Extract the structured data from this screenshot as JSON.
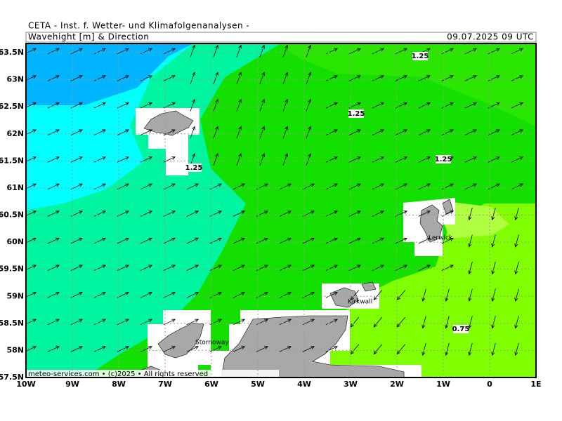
{
  "header": {
    "source": "CETA - Inst. f. Wetter- und Klimafolgenanalysen -",
    "title": "Wavehight [m] & Direction",
    "datetime": "09.07.2025 09 UTC"
  },
  "map": {
    "lat_ticks": [
      {
        "value": 63.5,
        "label": "63.5N"
      },
      {
        "value": 63,
        "label": "63N"
      },
      {
        "value": 62.5,
        "label": "62.5N"
      },
      {
        "value": 62,
        "label": "62N"
      },
      {
        "value": 61.5,
        "label": "61.5N"
      },
      {
        "value": 61,
        "label": "61N"
      },
      {
        "value": 60.5,
        "label": "60.5N"
      },
      {
        "value": 60,
        "label": "60N"
      },
      {
        "value": 59.5,
        "label": "59.5N"
      },
      {
        "value": 59,
        "label": "59N"
      },
      {
        "value": 58.5,
        "label": "58.5N"
      },
      {
        "value": 58,
        "label": "58N"
      },
      {
        "value": 57.5,
        "label": "57.5N"
      }
    ],
    "lon_ticks": [
      {
        "value": -10,
        "label": "10W"
      },
      {
        "value": -9,
        "label": "9W"
      },
      {
        "value": -8,
        "label": "8W"
      },
      {
        "value": -7,
        "label": "7W"
      },
      {
        "value": -6,
        "label": "6W"
      },
      {
        "value": -5,
        "label": "5W"
      },
      {
        "value": -4,
        "label": "4W"
      },
      {
        "value": -3,
        "label": "3W"
      },
      {
        "value": -2,
        "label": "2W"
      },
      {
        "value": -1,
        "label": "1W"
      },
      {
        "value": 0,
        "label": "0"
      },
      {
        "value": 1,
        "label": "1E"
      }
    ],
    "contour_labels": [
      "1.25",
      "1.25",
      "1.25",
      "1.25",
      "0.75"
    ],
    "places": [
      "Lerwick",
      "Kirkwall",
      "Stornoway"
    ]
  },
  "footer": "meteo-services.com • (c)2025 • All rights reserved"
}
